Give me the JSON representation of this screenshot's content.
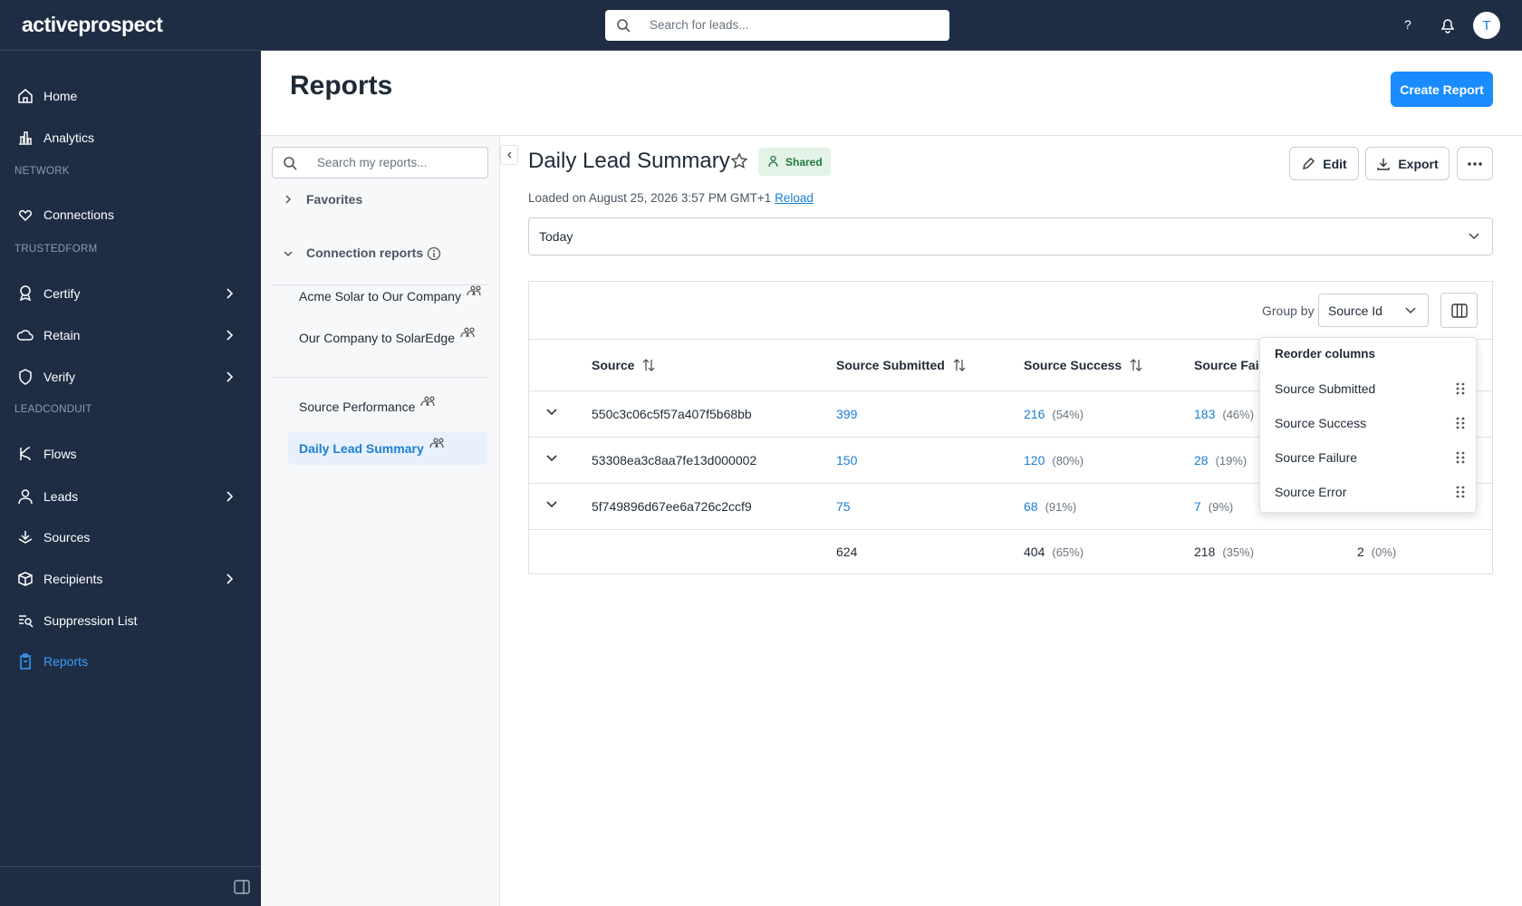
{
  "header": {
    "logo": "activeprospect",
    "search_placeholder": "Search for leads...",
    "help": "?",
    "avatar": "T"
  },
  "sidebar": {
    "items": [
      {
        "label": "Home",
        "icon": "home"
      },
      {
        "label": "Analytics",
        "icon": "chart"
      },
      {
        "section": "NETWORK"
      },
      {
        "label": "Connections",
        "icon": "link"
      },
      {
        "section": "TRUSTEDFORM"
      },
      {
        "label": "Certify",
        "icon": "badge",
        "expand": true
      },
      {
        "label": "Retain",
        "icon": "cloud",
        "expand": true
      },
      {
        "label": "Verify",
        "icon": "shield",
        "expand": true
      },
      {
        "section": "LEADCONDUIT"
      },
      {
        "label": "Flows",
        "icon": "flow"
      },
      {
        "label": "Leads",
        "icon": "user",
        "expand": true
      },
      {
        "label": "Sources",
        "icon": "stack"
      },
      {
        "label": "Recipients",
        "icon": "box",
        "expand": true
      },
      {
        "label": "Suppression List",
        "icon": "search"
      },
      {
        "label": "Reports",
        "icon": "clip",
        "active": true
      }
    ]
  },
  "page": {
    "title": "Reports",
    "create_button": "Create Report"
  },
  "reports_panel": {
    "search_placeholder": "Search my reports...",
    "favorites": "Favorites",
    "connection_reports": {
      "title": "Connection reports",
      "items": [
        "Acme Solar to Our Company",
        "Our Company to SolarEdge"
      ]
    },
    "reports": [
      "Source Performance",
      "Daily Lead Summary"
    ]
  },
  "report": {
    "title": "Daily Lead Summary",
    "badge": "Shared",
    "loaded": "Loaded on August 25, 2026 3:57 PM GMT+1",
    "reload": "Reload",
    "edit": "Edit",
    "export": "Export",
    "date_range": "Today",
    "group_by_label": "Group by",
    "group_by_value": "Source Id"
  },
  "table": {
    "columns": [
      "Source",
      "Source Submitted",
      "Source Success",
      "Source Failure"
    ],
    "rows": [
      {
        "source": "550c3c06c5f57a407f5b68bb",
        "submitted": "399",
        "success": "216",
        "success_pct": "(54%)",
        "failure": "183",
        "failure_pct": "(46%)"
      },
      {
        "source": "53308ea3c8aa7fe13d000002",
        "submitted": "150",
        "success": "120",
        "success_pct": "(80%)",
        "failure": "28",
        "failure_pct": "(19%)"
      },
      {
        "source": "5f749896d67ee6a726c2ccf9",
        "submitted": "75",
        "success": "68",
        "success_pct": "(91%)",
        "failure": "7",
        "failure_pct": "(9%)"
      }
    ],
    "totals": {
      "submitted": "624",
      "success": "404",
      "success_pct": "(65%)",
      "failure": "218",
      "failure_pct": "(35%)",
      "error": "2",
      "error_pct": "(0%)"
    }
  },
  "reorder_popup": {
    "title": "Reorder columns",
    "items": [
      "Source Submitted",
      "Source Success",
      "Source Failure",
      "Source Error"
    ]
  }
}
